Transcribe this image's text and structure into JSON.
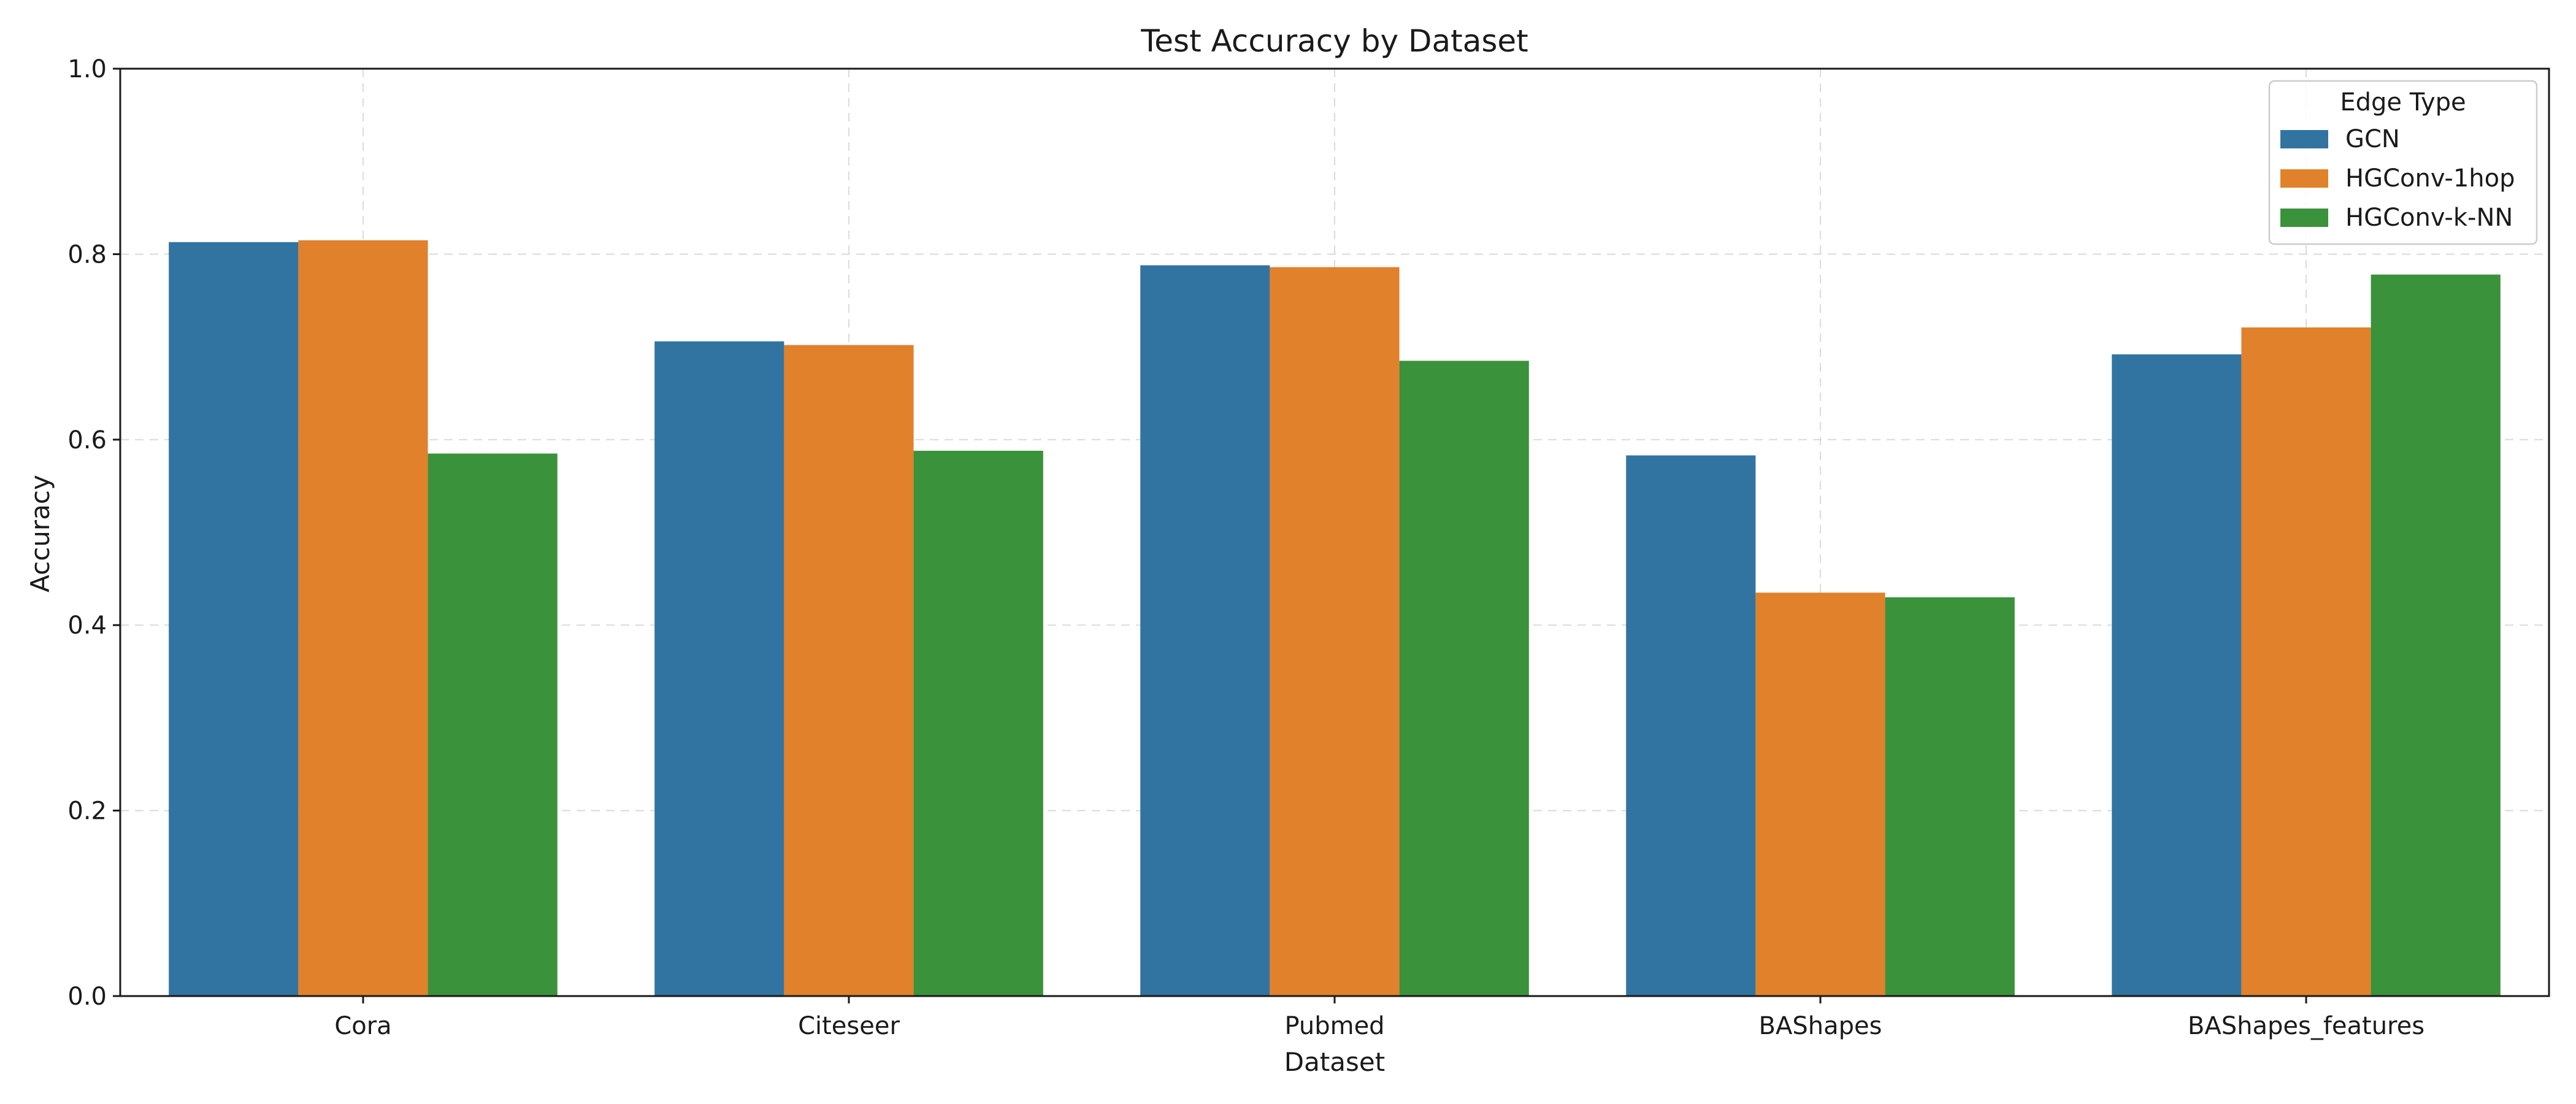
{
  "chart_data": {
    "type": "bar",
    "title": "Test Accuracy by Dataset",
    "xlabel": "Dataset",
    "ylabel": "Accuracy",
    "ylim": [
      0,
      1.0
    ],
    "yticks": [
      "0.0",
      "0.2",
      "0.4",
      "0.6",
      "0.8",
      "1.0"
    ],
    "grid": true,
    "legend": {
      "title": "Edge Type",
      "placement": "top-right"
    },
    "categories": [
      "Cora",
      "Citeseer",
      "Pubmed",
      "BAShapes",
      "BAShapes_features"
    ],
    "series": [
      {
        "name": "GCN",
        "color": "#3274a1",
        "values": [
          0.813,
          0.706,
          0.788,
          0.583,
          0.692
        ]
      },
      {
        "name": "HGConv-1hop",
        "color": "#e1812c",
        "values": [
          0.815,
          0.702,
          0.786,
          0.435,
          0.721
        ]
      },
      {
        "name": "HGConv-k-NN",
        "color": "#3a923a",
        "values": [
          0.585,
          0.588,
          0.685,
          0.43,
          0.778
        ]
      }
    ]
  }
}
